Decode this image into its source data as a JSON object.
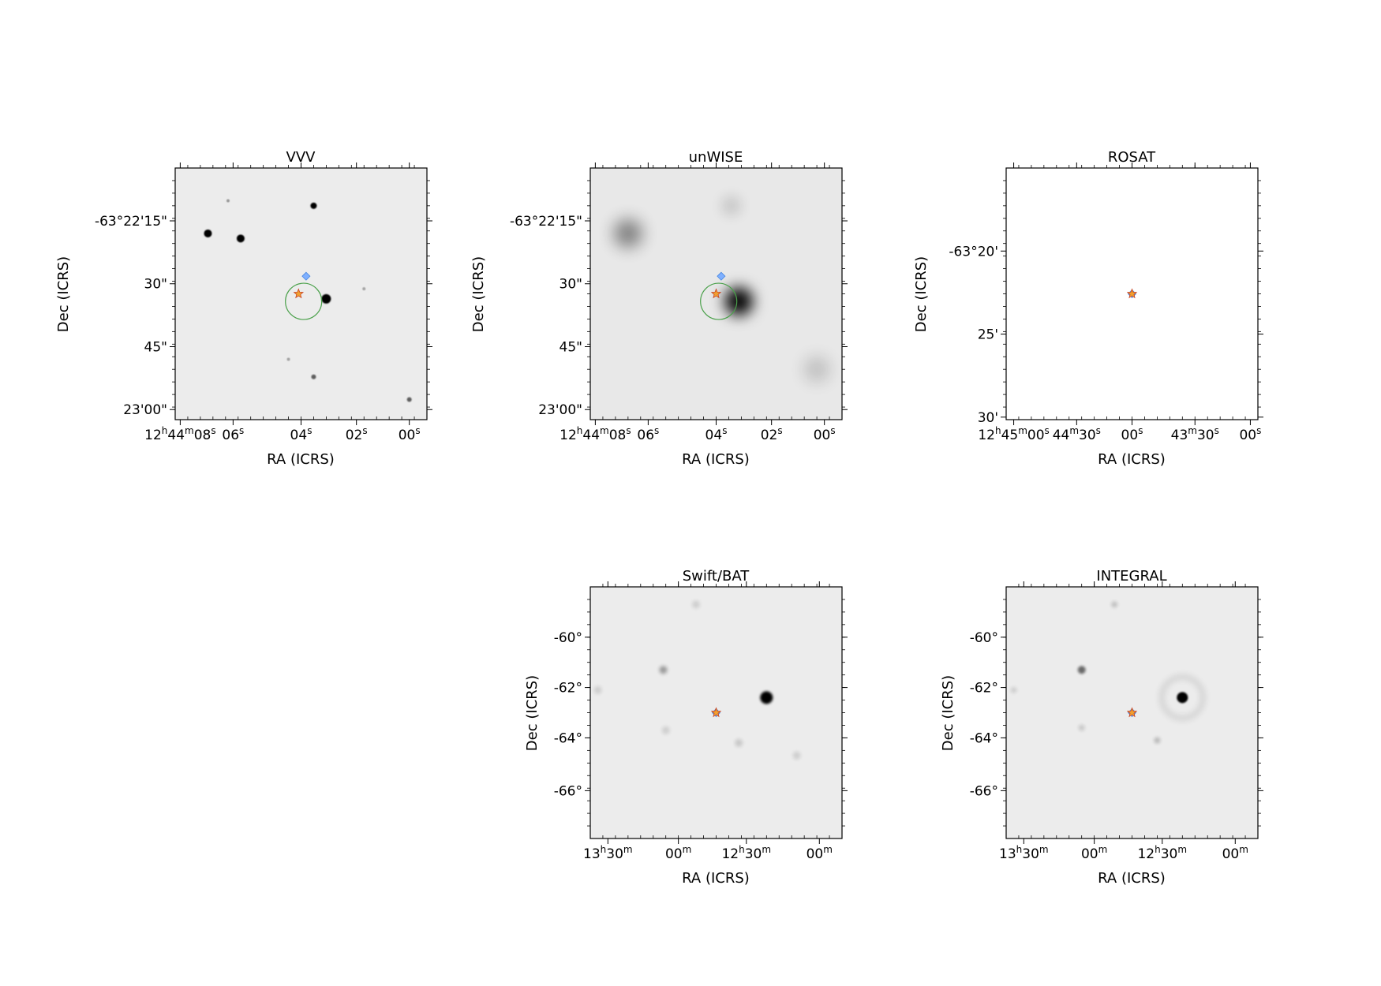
{
  "panels": [
    {
      "id": "vvv",
      "title": "VVV",
      "xlabel": "RA (ICRS)",
      "ylabel": "Dec (ICRS)",
      "x_ticks": [
        "12h44m08s",
        "06s",
        "04s",
        "02s",
        "00s"
      ],
      "x_tick_pos": [
        0.02,
        0.23,
        0.5,
        0.72,
        0.93
      ],
      "y_ticks": [
        "-63°22'15\"",
        "30\"",
        "45\"",
        "23'00\""
      ],
      "y_tick_pos": [
        0.21,
        0.46,
        0.71,
        0.96
      ],
      "background": "light",
      "sources": [
        {
          "fx": 0.13,
          "fy": 0.26,
          "r": 5,
          "blur": 0.8,
          "opacity": 1
        },
        {
          "fx": 0.26,
          "fy": 0.28,
          "r": 5,
          "blur": 0.8,
          "opacity": 1
        },
        {
          "fx": 0.55,
          "fy": 0.15,
          "r": 4,
          "blur": 0.8,
          "opacity": 1
        },
        {
          "fx": 0.6,
          "fy": 0.52,
          "r": 6,
          "blur": 0.8,
          "opacity": 1
        },
        {
          "fx": 0.55,
          "fy": 0.83,
          "r": 3,
          "blur": 0.8,
          "opacity": 0.6
        },
        {
          "fx": 0.93,
          "fy": 0.92,
          "r": 3,
          "blur": 0.8,
          "opacity": 0.6
        },
        {
          "fx": 0.21,
          "fy": 0.13,
          "r": 2,
          "blur": 0.5,
          "opacity": 0.35
        },
        {
          "fx": 0.75,
          "fy": 0.48,
          "r": 2,
          "blur": 0.5,
          "opacity": 0.3
        },
        {
          "fx": 0.45,
          "fy": 0.76,
          "r": 2,
          "blur": 0.5,
          "opacity": 0.3
        }
      ],
      "circle": {
        "fx": 0.51,
        "fy": 0.53,
        "r": 23
      },
      "star": {
        "fx": 0.49,
        "fy": 0.5
      },
      "diamond": {
        "fx": 0.52,
        "fy": 0.43
      }
    },
    {
      "id": "unwise",
      "title": "unWISE",
      "xlabel": "RA (ICRS)",
      "ylabel": "Dec (ICRS)",
      "x_ticks": [
        "12h44m08s",
        "06s",
        "04s",
        "02s",
        "00s"
      ],
      "x_tick_pos": [
        0.02,
        0.23,
        0.5,
        0.72,
        0.93
      ],
      "y_ticks": [
        "-63°22'15\"",
        "30\"",
        "45\"",
        "23'00\""
      ],
      "y_tick_pos": [
        0.21,
        0.46,
        0.71,
        0.96
      ],
      "background": "hazy",
      "sources": [
        {
          "fx": 0.59,
          "fy": 0.53,
          "r": 18,
          "blur": 9,
          "opacity": 1
        },
        {
          "fx": 0.15,
          "fy": 0.26,
          "r": 18,
          "blur": 10,
          "opacity": 0.45
        },
        {
          "fx": 0.56,
          "fy": 0.15,
          "r": 12,
          "blur": 8,
          "opacity": 0.15
        },
        {
          "fx": 0.9,
          "fy": 0.8,
          "r": 16,
          "blur": 10,
          "opacity": 0.18
        }
      ],
      "circle": {
        "fx": 0.51,
        "fy": 0.53,
        "r": 23
      },
      "star": {
        "fx": 0.5,
        "fy": 0.5
      },
      "diamond": {
        "fx": 0.52,
        "fy": 0.43
      }
    },
    {
      "id": "rosat",
      "title": "ROSAT",
      "xlabel": "RA (ICRS)",
      "ylabel": "Dec (ICRS)",
      "x_ticks": [
        "12h45m00s",
        "44m30s",
        "00s",
        "43m30s",
        "00s"
      ],
      "x_tick_pos": [
        0.03,
        0.28,
        0.5,
        0.75,
        0.97
      ],
      "y_ticks": [
        "-63°20'",
        "25'",
        "30'"
      ],
      "y_tick_pos": [
        0.33,
        0.66,
        0.99
      ],
      "background": "white",
      "sources": [],
      "circle": null,
      "star": {
        "fx": 0.5,
        "fy": 0.5
      },
      "diamond": {
        "fx": 0.5,
        "fy": 0.5
      }
    },
    {
      "id": "swiftbat",
      "title": "Swift/BAT",
      "xlabel": "RA (ICRS)",
      "ylabel": "Dec (ICRS)",
      "x_ticks": [
        "13h30m",
        "00m",
        "12h30m",
        "00m"
      ],
      "x_tick_pos": [
        0.07,
        0.35,
        0.62,
        0.91
      ],
      "y_ticks": [
        "-60°",
        "-62°",
        "-64°",
        "-66°"
      ],
      "y_tick_pos": [
        0.2,
        0.4,
        0.6,
        0.81
      ],
      "background": "light",
      "sources": [
        {
          "fx": 0.7,
          "fy": 0.44,
          "r": 8,
          "blur": 1.5,
          "opacity": 1
        },
        {
          "fx": 0.29,
          "fy": 0.33,
          "r": 5,
          "blur": 2.5,
          "opacity": 0.35
        },
        {
          "fx": 0.42,
          "fy": 0.07,
          "r": 5,
          "blur": 2.5,
          "opacity": 0.12
        },
        {
          "fx": 0.3,
          "fy": 0.57,
          "r": 5,
          "blur": 2.5,
          "opacity": 0.12
        },
        {
          "fx": 0.59,
          "fy": 0.62,
          "r": 5,
          "blur": 2.5,
          "opacity": 0.15
        },
        {
          "fx": 0.82,
          "fy": 0.67,
          "r": 5,
          "blur": 2.5,
          "opacity": 0.12
        },
        {
          "fx": 0.03,
          "fy": 0.41,
          "r": 5,
          "blur": 2.5,
          "opacity": 0.12
        }
      ],
      "circle": null,
      "star": {
        "fx": 0.5,
        "fy": 0.5
      },
      "diamond": {
        "fx": 0.5,
        "fy": 0.5
      }
    },
    {
      "id": "integral",
      "title": "INTEGRAL",
      "xlabel": "RA (ICRS)",
      "ylabel": "Dec (ICRS)",
      "x_ticks": [
        "13h30m",
        "00m",
        "12h30m",
        "00m"
      ],
      "x_tick_pos": [
        0.07,
        0.35,
        0.62,
        0.91
      ],
      "y_ticks": [
        "-60°",
        "-62°",
        "-64°",
        "-66°"
      ],
      "y_tick_pos": [
        0.2,
        0.4,
        0.6,
        0.81
      ],
      "background": "light",
      "sources": [
        {
          "fx": 0.7,
          "fy": 0.44,
          "r": 7,
          "blur": 1,
          "opacity": 1
        },
        {
          "fx": 0.3,
          "fy": 0.33,
          "r": 5,
          "blur": 1.5,
          "opacity": 0.55
        },
        {
          "fx": 0.43,
          "fy": 0.07,
          "r": 4,
          "blur": 2,
          "opacity": 0.18
        },
        {
          "fx": 0.3,
          "fy": 0.56,
          "r": 4,
          "blur": 2,
          "opacity": 0.15
        },
        {
          "fx": 0.6,
          "fy": 0.61,
          "r": 4,
          "blur": 2,
          "opacity": 0.22
        },
        {
          "fx": 0.03,
          "fy": 0.41,
          "r": 4,
          "blur": 2,
          "opacity": 0.12
        }
      ],
      "circle": null,
      "ring": {
        "fx": 0.7,
        "fy": 0.44,
        "r": 26
      },
      "star": {
        "fx": 0.5,
        "fy": 0.5
      },
      "diamond": {
        "fx": 0.5,
        "fy": 0.5
      }
    }
  ],
  "colors": {
    "background_light": "#ececec",
    "background_hazy": "#e8e8e8",
    "background_white": "#ffffff",
    "source": "#000000",
    "circle": "#4aa04a",
    "star_fill": "#f0a030",
    "star_edge": "#c84020",
    "diamond_fill": "#7fb0ff",
    "diamond_edge": "#4a88e0"
  }
}
